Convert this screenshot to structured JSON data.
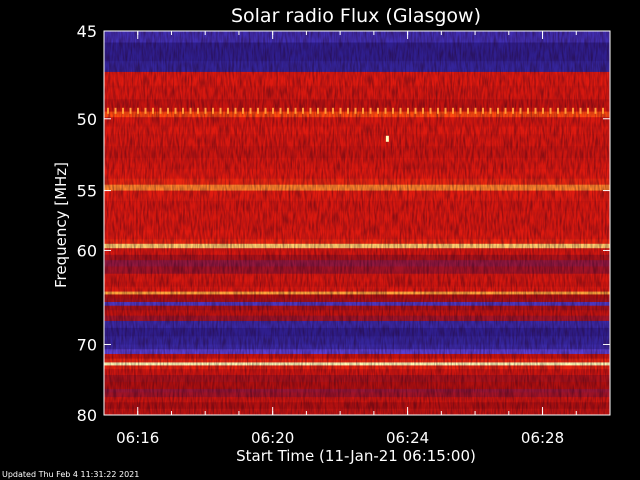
{
  "chart_data": {
    "type": "heatmap",
    "title": "Solar radio Flux (Glasgow)",
    "xlabel": "Start Time (11-Jan-21 06:15:00)",
    "ylabel": "Frequency [MHz]",
    "x_ticks": [
      "06:16",
      "06:20",
      "06:24",
      "06:28"
    ],
    "x_tick_minutes": [
      1,
      5,
      9,
      13
    ],
    "x_range_minutes": [
      0,
      15
    ],
    "y_ticks": [
      45,
      50,
      55,
      60,
      70,
      80
    ],
    "y_range_mhz": [
      45,
      80
    ],
    "y_scale": "reciprocal",
    "grid": false,
    "colormap": [
      "#1a0a5e",
      "#3b2aa8",
      "#5a3fd0",
      "#8a1a4a",
      "#b01010",
      "#e01a10",
      "#ff4a10",
      "#ffb040",
      "#ffffc0"
    ],
    "bands_mhz_intensity": [
      [
        45.0,
        0.15
      ],
      [
        45.6,
        0.08
      ],
      [
        46.6,
        0.1
      ],
      [
        47.2,
        0.62
      ],
      [
        48.0,
        0.6
      ],
      [
        48.8,
        0.55
      ],
      [
        49.3,
        0.58
      ],
      [
        49.55,
        0.75
      ],
      [
        49.9,
        0.6
      ],
      [
        50.5,
        0.62
      ],
      [
        51.0,
        0.6
      ],
      [
        51.8,
        0.57
      ],
      [
        52.6,
        0.6
      ],
      [
        53.4,
        0.62
      ],
      [
        54.1,
        0.66
      ],
      [
        54.55,
        0.82
      ],
      [
        55.0,
        0.63
      ],
      [
        55.8,
        0.6
      ],
      [
        56.6,
        0.61
      ],
      [
        57.4,
        0.6
      ],
      [
        58.2,
        0.62
      ],
      [
        59.0,
        0.66
      ],
      [
        59.4,
        0.92
      ],
      [
        59.8,
        0.6
      ],
      [
        60.4,
        0.48
      ],
      [
        60.9,
        0.4
      ],
      [
        61.5,
        0.45
      ],
      [
        62.2,
        0.6
      ],
      [
        63.0,
        0.58
      ],
      [
        63.5,
        0.62
      ],
      [
        64.0,
        0.86
      ],
      [
        64.3,
        0.5
      ],
      [
        64.7,
        0.48
      ],
      [
        65.1,
        0.2
      ],
      [
        65.5,
        0.48
      ],
      [
        66.0,
        0.55
      ],
      [
        66.6,
        0.45
      ],
      [
        67.2,
        0.12
      ],
      [
        68.0,
        0.08
      ],
      [
        69.0,
        0.1
      ],
      [
        70.0,
        0.12
      ],
      [
        70.6,
        0.25
      ],
      [
        71.2,
        0.55
      ],
      [
        71.8,
        0.66
      ],
      [
        72.3,
        0.99
      ],
      [
        72.7,
        0.65
      ],
      [
        73.2,
        0.58
      ],
      [
        74.0,
        0.48
      ],
      [
        75.0,
        0.5
      ],
      [
        76.0,
        0.42
      ],
      [
        76.5,
        0.45
      ],
      [
        77.2,
        0.57
      ],
      [
        78.0,
        0.5
      ],
      [
        79.0,
        0.55
      ],
      [
        80.0,
        0.5
      ]
    ],
    "features": [
      {
        "kind": "periodic_spikes",
        "mhz": 49.5,
        "intensity": 0.85
      },
      {
        "kind": "spot",
        "mhz": 51.3,
        "minute": 8.4,
        "intensity": 1.0
      }
    ]
  },
  "footer": {
    "updated": "Updated Thu Feb  4 11:31:22 2021"
  }
}
